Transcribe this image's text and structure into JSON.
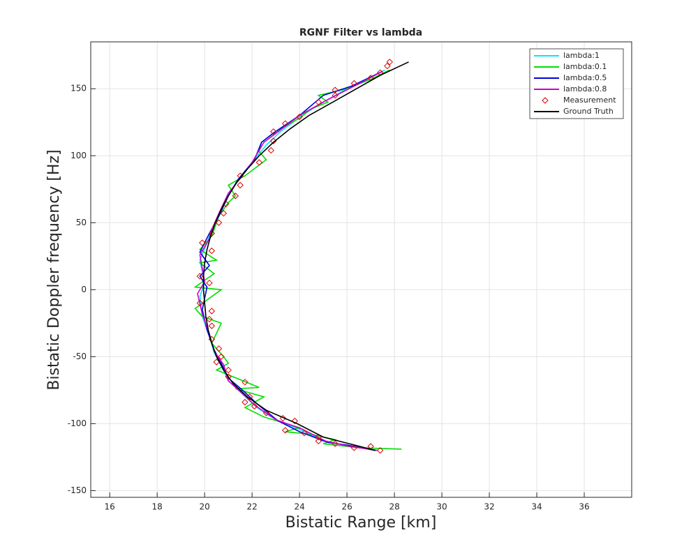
{
  "chart_data": {
    "type": "line",
    "title": "RGNF Filter vs lambda",
    "x_label": "Bistatic Range [km]",
    "y_label": "Bistatic Doppler frequency [Hz]",
    "xlim": [
      15.2,
      38
    ],
    "ylim": [
      -155,
      185
    ],
    "xticks": [
      16,
      18,
      20,
      22,
      24,
      26,
      28,
      30,
      32,
      34,
      36
    ],
    "yticks": [
      -150,
      -100,
      -50,
      0,
      50,
      100,
      150
    ],
    "grid": true,
    "legend": "top-right",
    "series": [
      {
        "name": "lambda:1",
        "color": "#00e5ff",
        "style": "line",
        "x": [
          27.3,
          26.2,
          25.0,
          24.1,
          23.0,
          22.2,
          21.6,
          21.0,
          20.7,
          20.4,
          20.2,
          19.9,
          19.8,
          20.0,
          19.8,
          20.1,
          20.3,
          20.6,
          21.0,
          21.4,
          22.0,
          22.6,
          23.2,
          24.1,
          25.0,
          26.2,
          27.6
        ],
        "values": [
          -120,
          -117,
          -113,
          -105,
          -97,
          -88,
          -78,
          -68,
          -57,
          -47,
          -35,
          -20,
          -5,
          5,
          22,
          35,
          45,
          55,
          70,
          82,
          95,
          108,
          118,
          130,
          140,
          152,
          164
        ]
      },
      {
        "name": "lambda:0.1",
        "color": "#00dd00",
        "style": "line",
        "x": [
          28.3,
          26.5,
          25.0,
          25.5,
          24.5,
          23.4,
          24.0,
          22.5,
          21.7,
          22.5,
          21.3,
          22.3,
          20.5,
          21.0,
          20.8,
          20.3,
          20.7,
          19.9,
          19.6,
          20.7,
          19.6,
          20.4,
          19.8,
          20.5,
          19.8,
          20.3,
          20.6,
          21.0,
          21.3,
          21.0,
          21.7,
          22.6,
          22.3,
          22.4,
          23.0,
          24.0,
          24.5,
          25.2,
          24.8,
          26.0,
          27.0,
          27.8
        ],
        "values": [
          -119,
          -118,
          -115,
          -112,
          -108,
          -106,
          -103,
          -95,
          -88,
          -80,
          -74,
          -73,
          -60,
          -55,
          -50,
          -40,
          -25,
          -20,
          -14,
          0,
          2,
          12,
          20,
          22,
          30,
          40,
          55,
          65,
          70,
          78,
          85,
          97,
          103,
          110,
          118,
          128,
          135,
          140,
          145,
          150,
          157,
          164
        ]
      },
      {
        "name": "lambda:0.5",
        "color": "#0000dd",
        "style": "line",
        "x": [
          27.2,
          26.0,
          25.2,
          24.0,
          23.1,
          22.2,
          21.6,
          21.0,
          20.7,
          20.4,
          20.1,
          19.9,
          20.1,
          19.8,
          20.2,
          19.8,
          20.2,
          20.6,
          21.0,
          21.4,
          22.1,
          22.4,
          22.9,
          24.0,
          25.0,
          26.2,
          27.5
        ],
        "values": [
          -120,
          -116,
          -114,
          -106,
          -98,
          -85,
          -75,
          -66,
          -55,
          -45,
          -30,
          -15,
          2,
          10,
          18,
          28,
          42,
          55,
          70,
          82,
          97,
          110,
          117,
          130,
          145,
          152,
          163
        ]
      },
      {
        "name": "lambda:0.8",
        "color": "#cc00cc",
        "style": "line",
        "x": [
          27.3,
          26.1,
          25.1,
          24.1,
          23.0,
          22.1,
          21.5,
          21.0,
          20.8,
          20.4,
          20.2,
          19.9,
          19.7,
          20.0,
          19.8,
          20.2,
          20.3,
          20.6,
          21.0,
          21.5,
          22.0,
          22.5,
          23.1,
          24.0,
          25.1,
          26.2,
          27.5
        ],
        "values": [
          -120,
          -117,
          -113,
          -104,
          -97,
          -86,
          -76,
          -68,
          -56,
          -46,
          -33,
          -18,
          -3,
          6,
          26,
          38,
          45,
          57,
          72,
          83,
          95,
          110,
          118,
          130,
          141,
          151,
          163
        ]
      },
      {
        "name": "Measurement",
        "color": "#dd0000",
        "style": "marker",
        "x": [
          27.4,
          27.0,
          26.3,
          25.5,
          24.8,
          24.8,
          24.2,
          23.4,
          23.8,
          23.3,
          22.6,
          22.1,
          21.7,
          21.9,
          21.7,
          21.0,
          21.0,
          20.5,
          20.7,
          20.6,
          20.3,
          20.3,
          20.2,
          20.3,
          19.8,
          20.2,
          19.8,
          20.3,
          19.9,
          20.3,
          20.6,
          20.8,
          20.9,
          21.3,
          21.5,
          21.5,
          22.3,
          22.8,
          22.9,
          22.9,
          23.4,
          24.0,
          24.8,
          25.5,
          25.5,
          26.3,
          27.0,
          27.4,
          27.7,
          27.8
        ],
        "values": [
          -120,
          -117,
          -118,
          -115,
          -113,
          -110,
          -107,
          -105,
          -98,
          -96,
          -92,
          -87,
          -84,
          -80,
          -69,
          -65,
          -60,
          -54,
          -50,
          -44,
          -37,
          -27,
          -22,
          -16,
          -10,
          5,
          10,
          29,
          35,
          42,
          50,
          57,
          64,
          70,
          78,
          85,
          95,
          104,
          111,
          118,
          124,
          129,
          140,
          145,
          149,
          154,
          158,
          162,
          167,
          170
        ]
      },
      {
        "name": "Ground Truth",
        "color": "#000000",
        "style": "line",
        "x": [
          27.2,
          25.0,
          23.9,
          22.6,
          21.8,
          21.2,
          20.8,
          20.5,
          20.3,
          20.15,
          20.05,
          20.0,
          19.95,
          19.95,
          20.0,
          20.1,
          20.25,
          20.45,
          20.7,
          21.0,
          21.35,
          21.8,
          22.3,
          22.9,
          23.6,
          24.4,
          25.4,
          26.4,
          27.4,
          28.6
        ],
        "values": [
          -120,
          -110,
          -100,
          -90,
          -80,
          -70,
          -60,
          -50,
          -40,
          -30,
          -20,
          -10,
          0,
          10,
          20,
          30,
          40,
          50,
          60,
          70,
          80,
          90,
          100,
          110,
          120,
          130,
          140,
          150,
          160,
          170
        ]
      }
    ]
  }
}
